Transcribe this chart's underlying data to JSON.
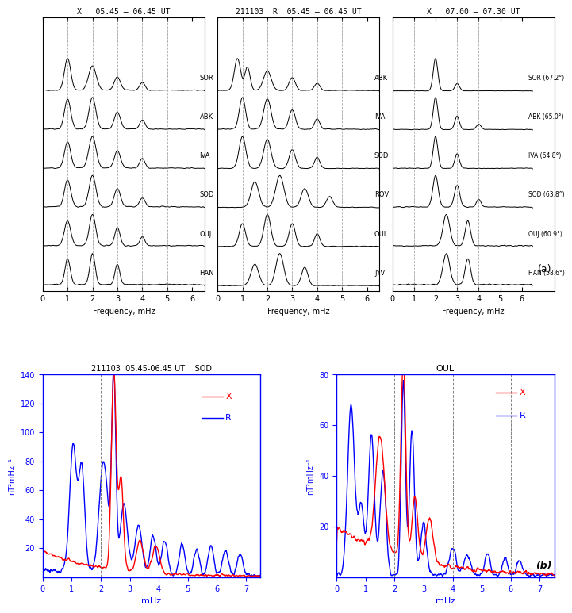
{
  "panel_a_titles": [
    "X   05.45 – 06.45 UT",
    "211103  R  05.45 – 06.45 UT",
    "X   07.00 – 07.30 UT"
  ],
  "panel_a_left_stations": [
    "SOR",
    "ABK",
    "IVA",
    "SOD",
    "OUJ",
    "HAN"
  ],
  "panel_a_mid_stations": [
    "ABK",
    "IVA",
    "SOD",
    "ROV",
    "OUL",
    "JYV"
  ],
  "panel_a_right_stations": [
    "SOR (67.2°)",
    "ABK (65.0°)",
    "IVA (64.8°)",
    "SOD (63.8°)",
    "OUJ (60.9°)",
    "HAN (58.6°)"
  ],
  "xlabel": "Frequency, mHz",
  "xlabel_right": "mHz",
  "dashed_lines": [
    1.0,
    2.0,
    3.0,
    4.0,
    5.0
  ],
  "dashed_lines_b": [
    2.0,
    4.0,
    6.0
  ],
  "sod_title": "211103  05.45-06.45 UT    SOD",
  "oul_title": "OUL",
  "sod_ylabel": "nT²mHz⁻¹",
  "oul_ylabel": "nT²mHz⁻¹",
  "sod_ylim": [
    0,
    140
  ],
  "oul_ylim": [
    0,
    80
  ],
  "sod_yticks": [
    20,
    40,
    60,
    80,
    100,
    120,
    140
  ],
  "oul_yticks": [
    20,
    40,
    60,
    80
  ],
  "label_b": "(b)",
  "label_a": "(a)"
}
